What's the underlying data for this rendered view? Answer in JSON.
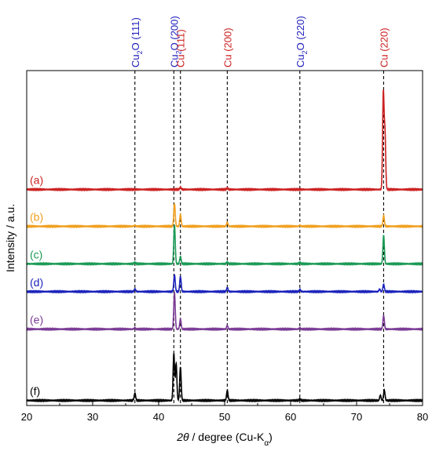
{
  "chart_data": {
    "type": "line",
    "xlabel_theta": "2θ",
    "xlabel_rest": " / degree (Cu-K",
    "xlabel_sub": "α",
    "xlabel_close": ")",
    "ylabel": "Intensity / a.u.",
    "xlim": [
      20,
      80
    ],
    "xticks": [
      20,
      30,
      40,
      50,
      60,
      70,
      80
    ],
    "xtick_labels": [
      "20",
      "30",
      "40",
      "50",
      "60",
      "70",
      "80"
    ],
    "reference_lines": [
      {
        "position": 36.4,
        "phase": "Cu",
        "sub": "2",
        "rest": "O (111)",
        "color": "#2222bb"
      },
      {
        "position": 42.3,
        "phase": "Cu",
        "sub": "2",
        "rest": "O (200)",
        "color": "#2222bb"
      },
      {
        "position": 43.3,
        "phase": "Cu (111)",
        "sub": "",
        "rest": "",
        "color": "#cc2222"
      },
      {
        "position": 50.4,
        "phase": "Cu (200)",
        "sub": "",
        "rest": "",
        "color": "#cc2222"
      },
      {
        "position": 61.4,
        "phase": "Cu",
        "sub": "2",
        "rest": "O (220)",
        "color": "#2222bb"
      },
      {
        "position": 74.1,
        "phase": "Cu (220)",
        "sub": "",
        "rest": "",
        "color": "#cc2222"
      }
    ],
    "series": [
      {
        "name": "(a)",
        "color": "#cc2222",
        "baseline": 0.645,
        "peaks": [
          [
            43.3,
            0.006
          ],
          [
            50.4,
            0.004
          ],
          [
            74.05,
            0.285
          ],
          [
            74.3,
            0.165
          ]
        ]
      },
      {
        "name": "(b)",
        "color": "#f0a020",
        "baseline": 0.535,
        "peaks": [
          [
            36.4,
            0.003
          ],
          [
            42.4,
            0.068
          ],
          [
            43.3,
            0.035
          ],
          [
            50.4,
            0.012
          ],
          [
            61.4,
            0.003
          ],
          [
            74.1,
            0.032
          ]
        ]
      },
      {
        "name": "(c)",
        "color": "#1a9a55",
        "baseline": 0.423,
        "peaks": [
          [
            36.4,
            0.004
          ],
          [
            42.4,
            0.115
          ],
          [
            43.3,
            0.022
          ],
          [
            50.4,
            0.005
          ],
          [
            61.4,
            0.004
          ],
          [
            74.1,
            0.085
          ]
        ]
      },
      {
        "name": "(d)",
        "color": "#1a22bb",
        "baseline": 0.34,
        "peaks": [
          [
            36.4,
            0.008
          ],
          [
            42.4,
            0.05
          ],
          [
            43.3,
            0.045
          ],
          [
            50.4,
            0.012
          ],
          [
            61.4,
            0.006
          ],
          [
            73.5,
            0.007
          ],
          [
            74.1,
            0.022
          ]
        ]
      },
      {
        "name": "(e)",
        "color": "#7a3a95",
        "baseline": 0.228,
        "peaks": [
          [
            36.4,
            0.004
          ],
          [
            42.4,
            0.108
          ],
          [
            43.3,
            0.03
          ],
          [
            50.4,
            0.01
          ],
          [
            61.4,
            0.004
          ],
          [
            74.1,
            0.04
          ]
        ]
      },
      {
        "name": "(f)",
        "color": "#000000",
        "baseline": 0.015,
        "peaks": [
          [
            36.4,
            0.022
          ],
          [
            42.3,
            0.14
          ],
          [
            42.65,
            0.11
          ],
          [
            43.3,
            0.1
          ],
          [
            50.4,
            0.03
          ],
          [
            61.4,
            0.004
          ],
          [
            73.6,
            0.015
          ],
          [
            74.2,
            0.03
          ]
        ]
      }
    ]
  }
}
